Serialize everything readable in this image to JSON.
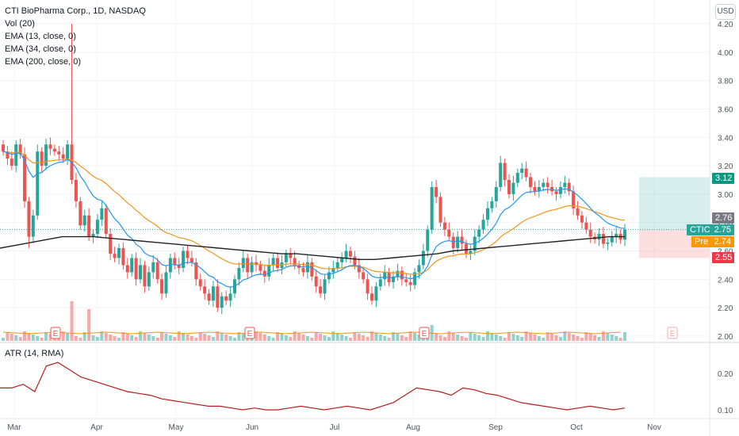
{
  "legend": {
    "title": "CTI BioPharma Corp., 1D, NASDAQ",
    "vol": "Vol (20)",
    "ema13": "EMA (13, close, 0)",
    "ema34": "EMA (34, close, 0)",
    "ema200": "EMA (200, close, 0)"
  },
  "currency_button": "USD",
  "atr_label": "ATR (14, RMA)",
  "price_tags": {
    "target": "3.12",
    "last": "2.76",
    "symbol": "CTIC",
    "close": "2.75",
    "pre_label": "Pre",
    "pre": "2.74",
    "stop": "2.55"
  },
  "earnings_marker": "E",
  "chart_data": {
    "type": "candlestick",
    "price_axis_ticks": [
      "4.20",
      "4.00",
      "3.80",
      "3.60",
      "3.40",
      "3.20",
      "3.00",
      "2.80",
      "2.60",
      "2.40",
      "2.20",
      "2.00"
    ],
    "atr_axis_ticks": [
      "0.20",
      "0.10"
    ],
    "time_axis_ticks": [
      "Mar",
      "Apr",
      "May",
      "Jun",
      "Jul",
      "Aug",
      "Sep",
      "Oct",
      "Nov"
    ],
    "ylim": [
      2.0,
      4.25
    ],
    "colors": {
      "up": "#26a69a",
      "down": "#ef5350",
      "ema13": "#2196f3",
      "ema34": "#f7931a",
      "ema200": "#222222",
      "atr": "#b71c1c",
      "vol_ma": "#f7931a"
    },
    "closes": [
      3.3,
      3.25,
      3.2,
      3.35,
      3.28,
      2.95,
      2.7,
      2.85,
      3.3,
      3.2,
      3.35,
      3.32,
      3.3,
      3.28,
      3.25,
      3.35,
      3.1,
      2.95,
      2.78,
      2.85,
      2.7,
      2.72,
      2.82,
      2.9,
      2.72,
      2.58,
      2.55,
      2.62,
      2.5,
      2.45,
      2.55,
      2.4,
      2.5,
      2.35,
      2.45,
      2.52,
      2.4,
      2.3,
      2.45,
      2.55,
      2.5,
      2.48,
      2.6,
      2.55,
      2.52,
      2.4,
      2.35,
      2.3,
      2.25,
      2.35,
      2.2,
      2.28,
      2.25,
      2.3,
      2.4,
      2.48,
      2.55,
      2.45,
      2.52,
      2.5,
      2.46,
      2.42,
      2.5,
      2.55,
      2.48,
      2.52,
      2.58,
      2.55,
      2.5,
      2.48,
      2.45,
      2.52,
      2.42,
      2.35,
      2.3,
      2.4,
      2.45,
      2.48,
      2.52,
      2.55,
      2.6,
      2.56,
      2.5,
      2.45,
      2.4,
      2.3,
      2.25,
      2.35,
      2.4,
      2.45,
      2.38,
      2.42,
      2.46,
      2.4,
      2.38,
      2.36,
      2.45,
      2.5,
      2.6,
      2.75,
      3.05,
      2.98,
      2.8,
      2.75,
      2.7,
      2.62,
      2.7,
      2.65,
      2.58,
      2.6,
      2.7,
      2.75,
      2.82,
      2.9,
      2.95,
      3.05,
      3.22,
      3.1,
      3.0,
      3.08,
      3.15,
      3.18,
      3.12,
      3.05,
      3.02,
      3.05,
      3.08,
      3.05,
      3.02,
      3.0,
      3.05,
      3.08,
      3.02,
      2.9,
      2.85,
      2.8,
      2.75,
      2.7,
      2.68,
      2.72,
      2.65,
      2.66,
      2.7,
      2.72,
      2.68,
      2.75
    ],
    "ema200_series": [
      2.62,
      2.64,
      2.66,
      2.68,
      2.7,
      2.7,
      2.7,
      2.69,
      2.68,
      2.67,
      2.66,
      2.65,
      2.64,
      2.63,
      2.62,
      2.61,
      2.6,
      2.59,
      2.58,
      2.58,
      2.57,
      2.56,
      2.55,
      2.54,
      2.54,
      2.55,
      2.56,
      2.57,
      2.58,
      2.6,
      2.61,
      2.62,
      2.63,
      2.64,
      2.65,
      2.66,
      2.67,
      2.68,
      2.69,
      2.7,
      2.7
    ],
    "atr_series": [
      0.16,
      0.16,
      0.17,
      0.15,
      0.22,
      0.23,
      0.21,
      0.19,
      0.18,
      0.17,
      0.16,
      0.15,
      0.145,
      0.14,
      0.13,
      0.125,
      0.12,
      0.115,
      0.11,
      0.11,
      0.105,
      0.1,
      0.105,
      0.1,
      0.1,
      0.105,
      0.11,
      0.105,
      0.1,
      0.105,
      0.11,
      0.105,
      0.1,
      0.11,
      0.12,
      0.14,
      0.16,
      0.155,
      0.15,
      0.14,
      0.16,
      0.155,
      0.145,
      0.14,
      0.13,
      0.12,
      0.115,
      0.11,
      0.105,
      0.1,
      0.105,
      0.11,
      0.105,
      0.1,
      0.105
    ]
  }
}
